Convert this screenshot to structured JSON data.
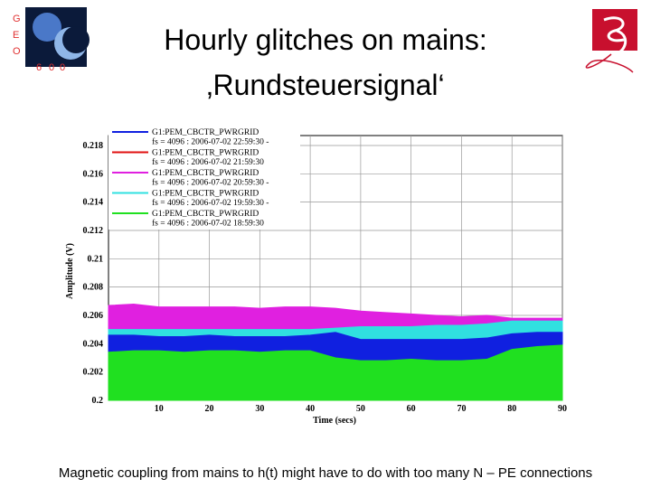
{
  "slide": {
    "title_lines": [
      "Hourly glitches on mains:",
      "‚Rundsteuersignal‘"
    ],
    "logo_letters": [
      "G",
      "E",
      "O",
      "6",
      "0",
      "0"
    ],
    "footer": "Magnetic coupling from mains to h(t) might have to do with too many N – PE connections"
  },
  "chart_data": {
    "type": "area",
    "xlabel": "Time (secs)",
    "ylabel": "Amplitude (V)",
    "x": [
      0,
      5,
      10,
      15,
      20,
      25,
      30,
      35,
      40,
      45,
      50,
      55,
      60,
      65,
      70,
      75,
      80,
      85,
      90
    ],
    "series": [
      {
        "name": "G1:PEM_CBCTR_PWRGRID",
        "legend_detail": "fs = 4096 : 2006-07-02 22:59:30 -",
        "color": "#1020e0",
        "values": [
          0.2046,
          0.2046,
          0.2045,
          0.2045,
          0.2046,
          0.2045,
          0.2045,
          0.2045,
          0.2046,
          0.2048,
          0.2043,
          0.2043,
          0.2043,
          0.2043,
          0.2043,
          0.2044,
          0.2047,
          0.2048,
          0.2048
        ]
      },
      {
        "name": "G1:PEM_CBCTR_PWRGRID",
        "legend_detail": "fs = 4096 : 2006-07-02 21:59:30",
        "color": "#e01010",
        "values": [
          null,
          null,
          null,
          null,
          null,
          null,
          null,
          null,
          null,
          null,
          null,
          null,
          null,
          null,
          null,
          null,
          null,
          null,
          null
        ]
      },
      {
        "name": "G1:PEM_CBCTR_PWRGRID",
        "legend_detail": "fs = 4096 : 2006-07-02 20:59:30 -",
        "color": "#e020e0",
        "values": [
          0.2067,
          0.2068,
          0.2066,
          0.2066,
          0.2066,
          0.2066,
          0.2065,
          0.2066,
          0.2066,
          0.2065,
          0.2063,
          0.2062,
          0.2061,
          0.206,
          0.2059,
          0.206,
          0.2058,
          0.2058,
          0.2058
        ]
      },
      {
        "name": "G1:PEM_CBCTR_PWRGRID",
        "legend_detail": "fs = 4096 : 2006-07-02 19:59:30 -",
        "color": "#30e0e0",
        "values": [
          0.205,
          0.205,
          0.205,
          0.205,
          0.205,
          0.205,
          0.205,
          0.205,
          0.205,
          0.2051,
          0.2052,
          0.2052,
          0.2052,
          0.2053,
          0.2053,
          0.2054,
          0.2056,
          0.2056,
          0.2056
        ]
      },
      {
        "name": "G1:PEM_CBCTR_PWRGRID",
        "legend_detail": "fs = 4096 : 2006-07-02 18:59:30",
        "color": "#20e020",
        "values": [
          0.2034,
          0.2035,
          0.2035,
          0.2034,
          0.2035,
          0.2035,
          0.2034,
          0.2035,
          0.2035,
          0.203,
          0.2028,
          0.2028,
          0.2029,
          0.2028,
          0.2028,
          0.2029,
          0.2036,
          0.2038,
          0.2039
        ]
      }
    ],
    "xlim": [
      0,
      90
    ],
    "xticks": [
      10,
      20,
      30,
      40,
      50,
      60,
      70,
      80,
      90
    ],
    "ylim": [
      0.2,
      0.2187
    ],
    "yticks": [
      0.2,
      0.202,
      0.204,
      0.206,
      0.208,
      0.21,
      0.212,
      0.214,
      0.216,
      0.218
    ],
    "grid": true
  }
}
